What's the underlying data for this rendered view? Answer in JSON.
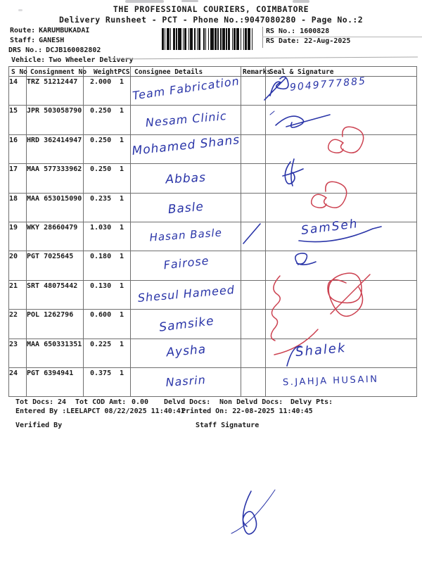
{
  "page": {
    "title": "THE PROFESSIONAL COURIERS, COIMBATORE",
    "subtitle": "Delivery Runsheet - PCT - Phone No.:9047080280 - Page No.:2"
  },
  "info": {
    "route_label": "Route:",
    "route_value": "KARUMBUKADAI",
    "staff_label": "Staff:",
    "staff_value": "GANESH",
    "drs_label": "DRS No.:",
    "drs_value": "DCJB160082802",
    "vehicle_label": "Vehicle:",
    "vehicle_value": "Two Wheeler Delivery",
    "rs_no_label": "RS No.:",
    "rs_no_value": "1600828",
    "rs_date_label": "RS Date:",
    "rs_date_value": "22-Aug-2025"
  },
  "table": {
    "headers": {
      "sno": "S No",
      "consignment": "Consignment No",
      "weight": "Weight",
      "pcs": "PCS",
      "consignee": "Consignee Details",
      "remarks": "Remarks",
      "seal": "Seal & Signature"
    },
    "rows": [
      {
        "sno": "14",
        "consignment": "TRZ 51212447",
        "weight": "2.000",
        "pcs": "1",
        "consignee": "Team Fabrication",
        "remarks": ""
      },
      {
        "sno": "15",
        "consignment": "JPR 503058790",
        "weight": "0.250",
        "pcs": "1",
        "consignee": "Nesam Clinic",
        "remarks": ""
      },
      {
        "sno": "16",
        "consignment": "HRD 362414947",
        "weight": "0.250",
        "pcs": "1",
        "consignee": "Mohamed Shans",
        "remarks": ""
      },
      {
        "sno": "17",
        "consignment": "MAA 577333962",
        "weight": "0.250",
        "pcs": "1",
        "consignee": "Abbas",
        "remarks": ""
      },
      {
        "sno": "18",
        "consignment": "MAA 653015090",
        "weight": "0.235",
        "pcs": "1",
        "consignee": "Basle",
        "remarks": ""
      },
      {
        "sno": "19",
        "consignment": "WKY 28660479",
        "weight": "1.030",
        "pcs": "1",
        "consignee": "Hasan Basle",
        "remarks": ""
      },
      {
        "sno": "20",
        "consignment": "PGT 7025645",
        "weight": "0.180",
        "pcs": "1",
        "consignee": "Fairose",
        "remarks": ""
      },
      {
        "sno": "21",
        "consignment": "SRT 48075442",
        "weight": "0.130",
        "pcs": "1",
        "consignee": "Shesul Hameed",
        "remarks": ""
      },
      {
        "sno": "22",
        "consignment": "POL 1262796",
        "weight": "0.600",
        "pcs": "1",
        "consignee": "Samsike",
        "remarks": ""
      },
      {
        "sno": "23",
        "consignment": "MAA 650331351",
        "weight": "0.225",
        "pcs": "1",
        "consignee": "Aysha",
        "remarks": ""
      },
      {
        "sno": "24",
        "consignment": "PGT 6394941",
        "weight": "0.375",
        "pcs": "1",
        "consignee": "Nasrin",
        "remarks": ""
      }
    ]
  },
  "signatures": {
    "row14_phone": "9049777885",
    "row19_name": "SamSeh",
    "row23_name": "Shalek",
    "row24_name": "S.JAHJA HUSAIN"
  },
  "summary": {
    "tot_docs_label": "Tot Docs:",
    "tot_docs_value": "24",
    "tot_cod_label": "Tot COD Amt:",
    "tot_cod_value": "0.00",
    "delvd_docs_label": "Delvd Docs:",
    "non_delvd_docs_label": "Non Delvd Docs:",
    "delvy_pts_label": "Delvy Pts:",
    "entered_by": "Entered By :LEELAPCT 08/22/2025 11:40:41",
    "printed_on": "Printed On: 22-08-2025 11:40:45",
    "verified_by_label": "Verified By",
    "staff_signature_label": "Staff Signature"
  },
  "colors": {
    "ink_blue": "#2a35a8",
    "ink_red": "#cc4150",
    "print_black": "#1b1b1b"
  }
}
